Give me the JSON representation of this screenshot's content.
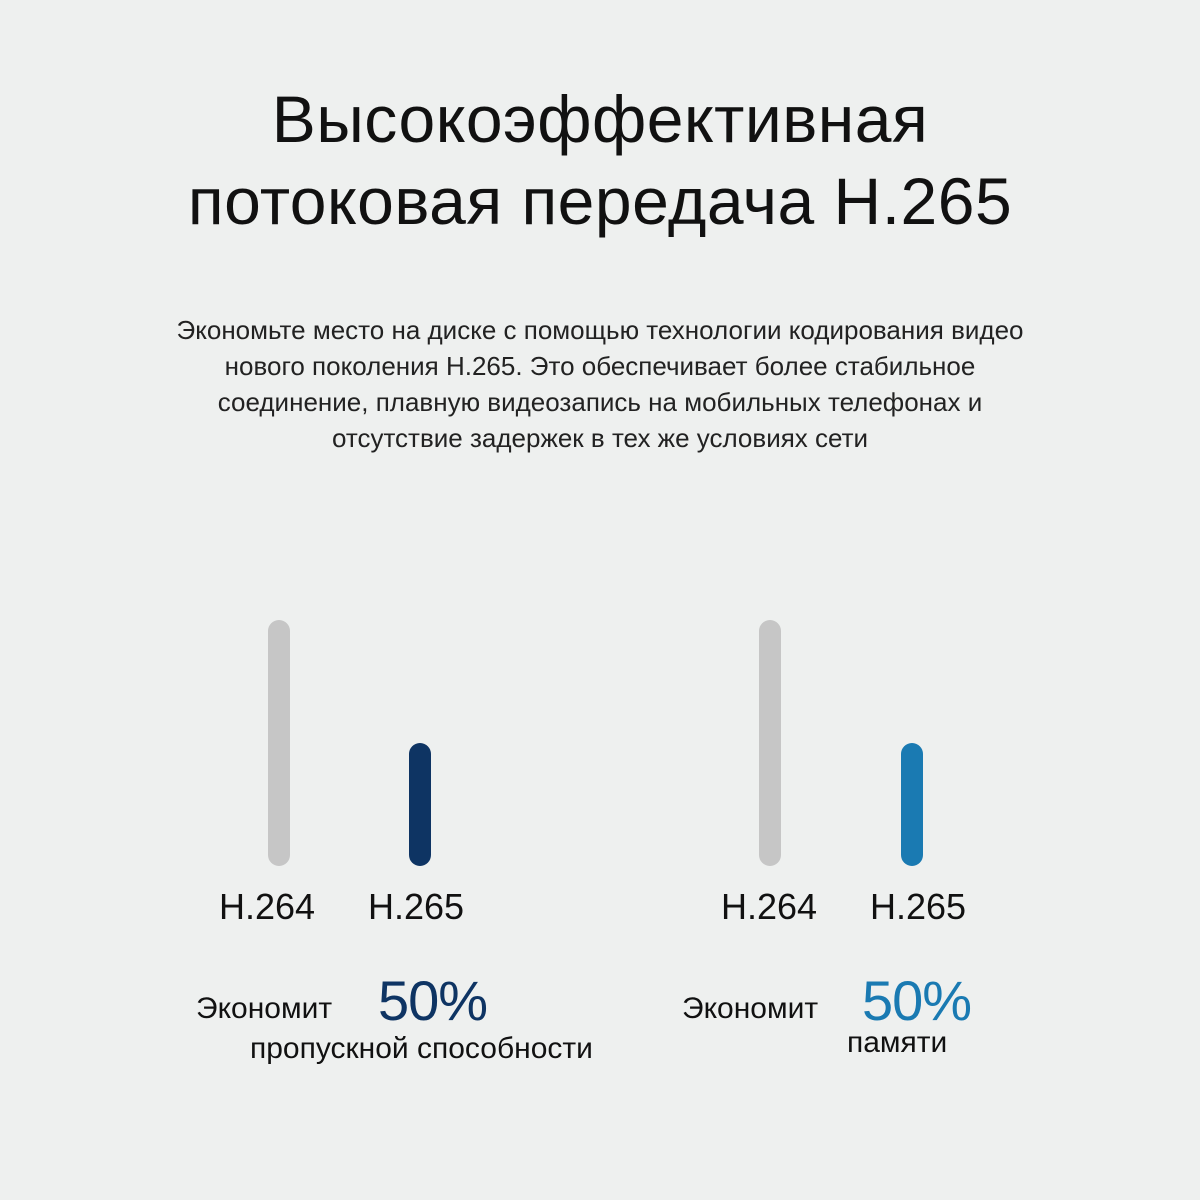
{
  "title": {
    "line1": "Высокоэффективная",
    "line2": "потоковая передача H.265"
  },
  "description": {
    "lines": [
      "Экономьте место на диске с помощью технологии кодирования видео",
      "нового поколения H.265. Это обеспечивает более стабильное",
      "соединение, плавную видеозапись на мобильных телефонах и",
      "отсутствие задержек в тех же условиях сети"
    ]
  },
  "chart_data": [
    {
      "type": "bar",
      "categories": [
        "H.264",
        "H.265"
      ],
      "values": [
        100,
        50
      ],
      "ylim": [
        0,
        100
      ],
      "colors": [
        "#c6c6c6",
        "#0e3463"
      ],
      "saves_label": "Экономит",
      "percent": "50%",
      "percent_color": "#0e3463",
      "caption": "пропускной способности"
    },
    {
      "type": "bar",
      "categories": [
        "H.264",
        "H.265"
      ],
      "values": [
        100,
        50
      ],
      "ylim": [
        0,
        100
      ],
      "colors": [
        "#c6c6c6",
        "#1a7ab2"
      ],
      "saves_label": "Экономит",
      "percent": "50%",
      "percent_color": "#1a7ab2",
      "caption": "памяти"
    }
  ]
}
